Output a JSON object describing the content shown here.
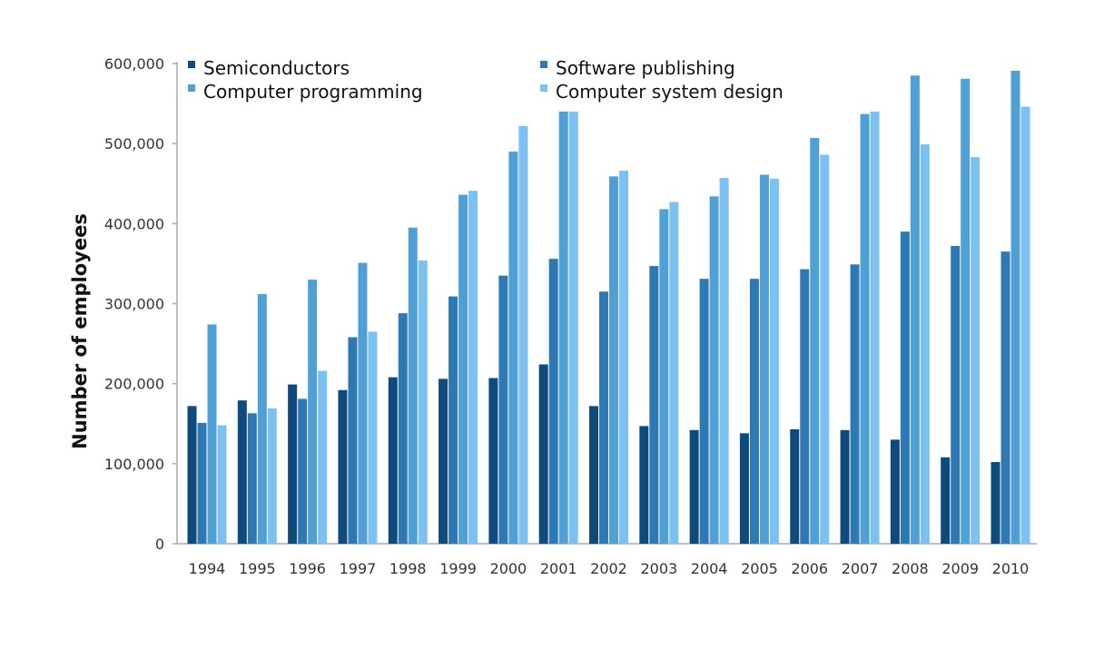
{
  "chart_data": {
    "type": "bar",
    "title": "",
    "xlabel": "",
    "ylabel": "Number of employees",
    "ylim": [
      0,
      600000
    ],
    "yticks": [
      "0",
      "100,000",
      "200,000",
      "300,000",
      "400,000",
      "500,000",
      "600,000"
    ],
    "ytick_values": [
      0,
      100000,
      200000,
      300000,
      400000,
      500000,
      600000
    ],
    "grid": false,
    "legend_position": "top",
    "categories": [
      "1994",
      "1995",
      "1996",
      "1997",
      "1998",
      "1999",
      "2000",
      "2001",
      "2002",
      "2003",
      "2004",
      "2005",
      "2006",
      "2007",
      "2008",
      "2009",
      "2010"
    ],
    "series": [
      {
        "name": "Semiconductors",
        "color": "#0e4a7b",
        "values": [
          172000,
          179000,
          199000,
          192000,
          208000,
          206000,
          207000,
          224000,
          172000,
          147000,
          142000,
          138000,
          143000,
          142000,
          130000,
          108000,
          102000
        ]
      },
      {
        "name": "Software publishing",
        "color": "#2e79b3",
        "values": [
          151000,
          163000,
          181000,
          258000,
          288000,
          309000,
          335000,
          356000,
          315000,
          347000,
          331000,
          331000,
          343000,
          349000,
          390000,
          372000,
          365000
        ]
      },
      {
        "name": "Computer programming",
        "color": "#50a0d6",
        "values": [
          274000,
          312000,
          330000,
          351000,
          395000,
          436000,
          490000,
          540000,
          459000,
          418000,
          434000,
          461000,
          507000,
          537000,
          585000,
          581000,
          591000
        ]
      },
      {
        "name": "Computer system design",
        "color": "#7bc2f2",
        "values": [
          148000,
          169000,
          216000,
          265000,
          354000,
          441000,
          522000,
          540000,
          466000,
          427000,
          457000,
          456000,
          486000,
          540000,
          499000,
          483000,
          546000
        ]
      }
    ]
  }
}
